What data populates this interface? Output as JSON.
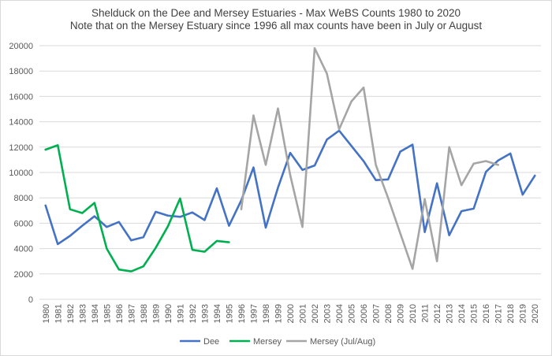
{
  "chart_data": {
    "type": "line",
    "title": "Shelduck on the Dee and Mersey Estuaries - Max WeBS Counts 1980 to 2020",
    "subtitle": "Note that on the Mersey Estuary since 1996 all max counts have been in July or August",
    "xlabel": "",
    "ylabel": "",
    "ylim": [
      0,
      20000
    ],
    "yticks": [
      0,
      2000,
      4000,
      6000,
      8000,
      10000,
      12000,
      14000,
      16000,
      18000,
      20000
    ],
    "grid": true,
    "legend_position": "bottom",
    "categories": [
      "1980",
      "1981",
      "1982",
      "1983",
      "1984",
      "1985",
      "1986",
      "1987",
      "1988",
      "1989",
      "1990",
      "1991",
      "1992",
      "1993",
      "1994",
      "1995",
      "1996",
      "1997",
      "1998",
      "1999",
      "2000",
      "2001",
      "2002",
      "2003",
      "2004",
      "2005",
      "2006",
      "2007",
      "2008",
      "2009",
      "2010",
      "2011",
      "2012",
      "2013",
      "2014",
      "2015",
      "2016",
      "2017",
      "2018",
      "2019",
      "2020"
    ],
    "series": [
      {
        "name": "Dee",
        "color": "#4472c4",
        "values": [
          7400,
          4350,
          5000,
          5800,
          6550,
          5700,
          6100,
          4650,
          4900,
          6900,
          6600,
          6500,
          6850,
          6250,
          8750,
          5800,
          7800,
          10400,
          5650,
          8800,
          11550,
          10200,
          10550,
          12600,
          13300,
          12100,
          10900,
          9400,
          9450,
          11650,
          12200,
          5300,
          9150,
          5050,
          6950,
          7150,
          10050,
          10950,
          11500,
          8250,
          9750
        ]
      },
      {
        "name": "Mersey",
        "color": "#00b050",
        "values": [
          11800,
          12150,
          7100,
          6800,
          7600,
          4000,
          2350,
          2200,
          2600,
          4050,
          5750,
          7950,
          3900,
          3750,
          4600,
          4500,
          null,
          null,
          null,
          null,
          null,
          null,
          null,
          null,
          null,
          null,
          null,
          null,
          null,
          null,
          null,
          null,
          null,
          null,
          null,
          null,
          null,
          null,
          null,
          null,
          null
        ]
      },
      {
        "name": "Mersey (Jul/Aug)",
        "color": "#a5a5a5",
        "values": [
          null,
          null,
          null,
          null,
          null,
          null,
          null,
          null,
          null,
          null,
          null,
          null,
          null,
          null,
          null,
          null,
          7100,
          14500,
          10600,
          15050,
          9800,
          5700,
          19800,
          17800,
          13400,
          15600,
          16700,
          10600,
          8000,
          5200,
          2400,
          7900,
          3000,
          12000,
          9000,
          10700,
          10900,
          10600,
          null,
          null,
          null
        ]
      }
    ]
  }
}
